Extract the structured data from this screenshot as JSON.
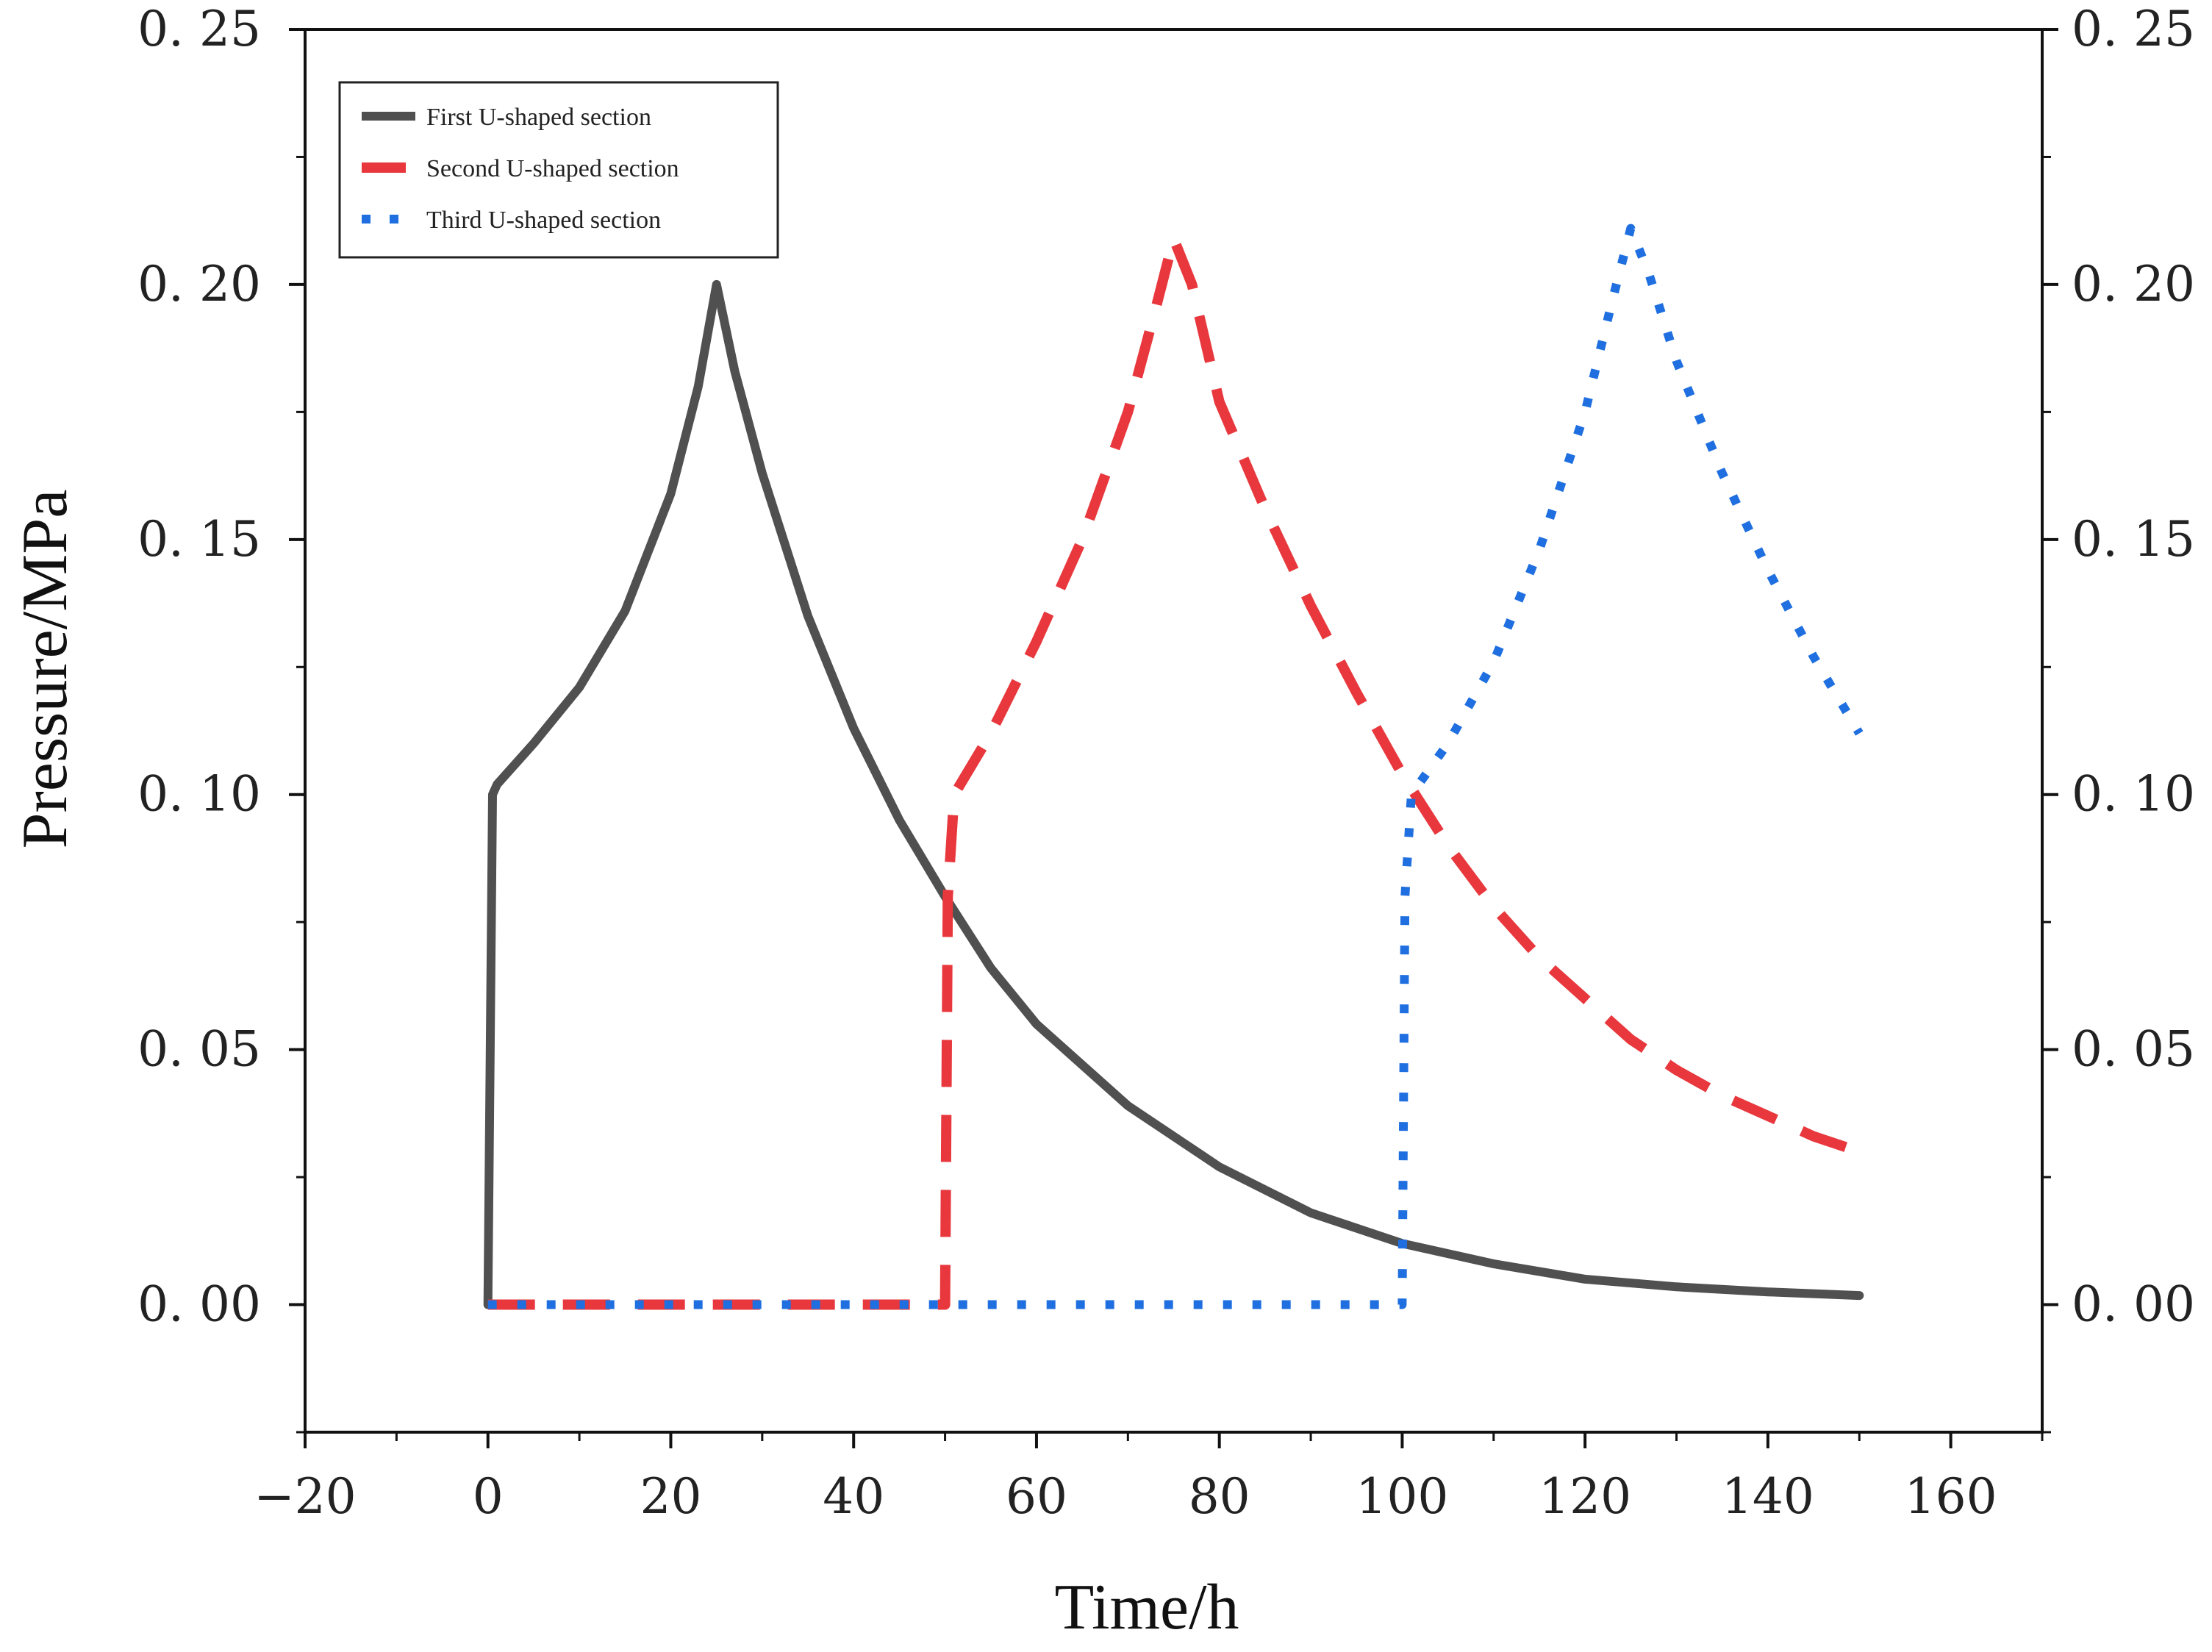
{
  "chart_data": {
    "type": "line",
    "title": "",
    "xlabel": "Time/h",
    "ylabel": "Pressure/MPa",
    "xlim": [
      -20,
      170
    ],
    "ylim": [
      -0.025,
      0.25
    ],
    "x_ticks": [
      -20,
      0,
      20,
      40,
      60,
      80,
      100,
      120,
      140,
      160
    ],
    "x_tick_labels": [
      "−20",
      "0",
      "20",
      "40",
      "60",
      "80",
      "100",
      "120",
      "140",
      "160"
    ],
    "y_ticks": [
      0,
      0.05,
      0.1,
      0.15,
      0.2,
      0.25
    ],
    "y_tick_labels": [
      "0. 00",
      "0. 05",
      "0. 10",
      "0. 15",
      "0. 20",
      "0. 25"
    ],
    "x_minor_step": 10,
    "y_minor_step": 0.025,
    "grid": false,
    "legend_position": "top-left",
    "series": [
      {
        "name": "First U-shaped  section",
        "color": "#505050",
        "style": "solid",
        "x": [
          0,
          0.5,
          1,
          5,
          10,
          15,
          20,
          23,
          25,
          27,
          30,
          35,
          40,
          45,
          50,
          55,
          60,
          70,
          80,
          90,
          100,
          110,
          120,
          130,
          140,
          150
        ],
        "y": [
          0,
          0.1,
          0.102,
          0.11,
          0.121,
          0.136,
          0.159,
          0.18,
          0.2,
          0.183,
          0.163,
          0.135,
          0.113,
          0.095,
          0.08,
          0.066,
          0.055,
          0.039,
          0.027,
          0.018,
          0.012,
          0.008,
          0.005,
          0.0035,
          0.0025,
          0.0018
        ]
      },
      {
        "name": "Second U-shaped  section",
        "color": "#e8383d",
        "style": "dashed",
        "x": [
          0,
          50,
          50.3,
          51,
          55,
          60,
          65,
          70,
          73,
          75,
          77,
          80,
          85,
          90,
          95,
          100,
          105,
          110,
          115,
          120,
          125,
          130,
          135,
          140,
          145,
          150
        ],
        "y": [
          0,
          0,
          0.08,
          0.1,
          0.112,
          0.13,
          0.15,
          0.175,
          0.195,
          0.209,
          0.2,
          0.177,
          0.156,
          0.137,
          0.12,
          0.104,
          0.09,
          0.078,
          0.068,
          0.06,
          0.052,
          0.046,
          0.041,
          0.037,
          0.033,
          0.03
        ]
      },
      {
        "name": "Third U-shaped  section",
        "color": "#1f6fe0",
        "style": "dotted",
        "x": [
          0,
          100,
          100.3,
          101,
          105,
          110,
          115,
          120,
          123,
          125,
          127,
          130,
          135,
          140,
          145,
          150
        ],
        "y": [
          0,
          0,
          0.08,
          0.1,
          0.11,
          0.126,
          0.148,
          0.175,
          0.197,
          0.211,
          0.202,
          0.185,
          0.163,
          0.144,
          0.127,
          0.112
        ]
      }
    ]
  }
}
